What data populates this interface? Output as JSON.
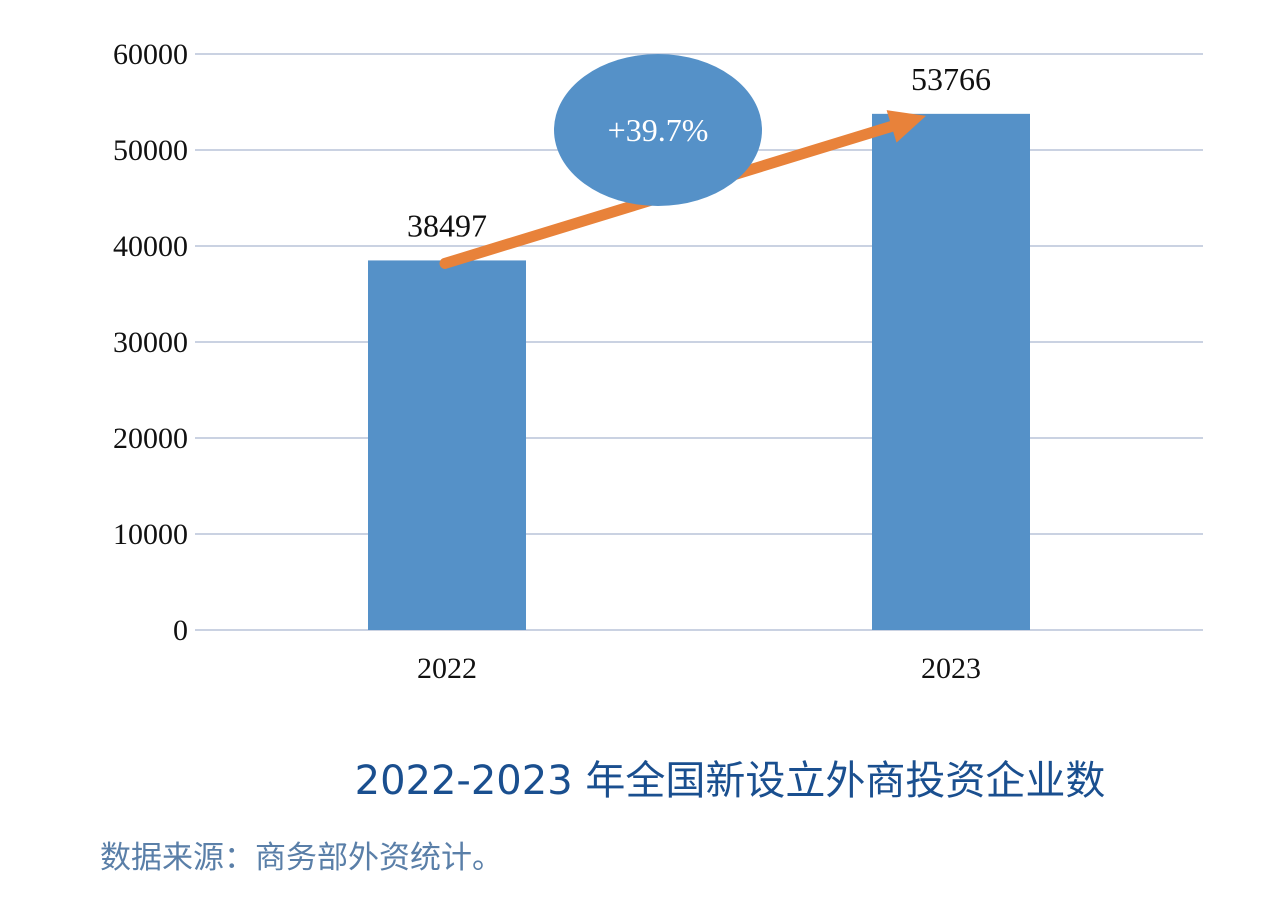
{
  "chart_data": {
    "type": "bar",
    "categories": [
      "2022",
      "2023"
    ],
    "values": [
      38497,
      53766
    ],
    "data_labels": [
      "38497",
      "53766"
    ],
    "y_ticks": [
      "0",
      "10000",
      "20000",
      "30000",
      "40000",
      "50000",
      "60000"
    ],
    "ylim": [
      0,
      60000
    ],
    "grid": true,
    "title": "2022-2023 年全国新设立外商投资企业数",
    "source": "数据来源：商务部外资统计。",
    "annotation": "+39.7%",
    "colors": {
      "bar": "#5591c8",
      "grid": "#b8c4d8",
      "arrow": "#e8823a",
      "badge": "#5591c8",
      "title": "#1a4f8f",
      "source": "#5a7fa8"
    }
  }
}
